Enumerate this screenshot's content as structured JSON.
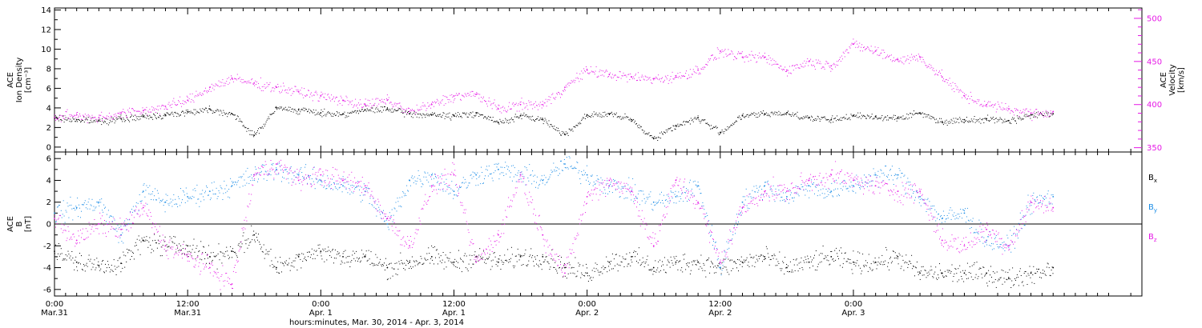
{
  "colors": {
    "black": "#000000",
    "magenta": "#e619e6",
    "blue": "#1a8ce6",
    "axis": "#000000"
  },
  "chart_data": [
    {
      "type": "scatter",
      "panel": "top",
      "ylabel_left": [
        "ACE",
        "Ion Density",
        "[cm⁻³]"
      ],
      "ylabel_right": [
        "ACE",
        "Velocity",
        "[km/s]"
      ],
      "left_axis": {
        "range": [
          -0.5,
          14.2
        ],
        "ticks": [
          "0",
          "2",
          "4",
          "6",
          "8",
          "10",
          "12",
          "14"
        ],
        "tick_values": [
          0,
          2,
          4,
          6,
          8,
          10,
          12,
          14
        ]
      },
      "right_axis": {
        "range": [
          345,
          512
        ],
        "ticks": [
          "350",
          "400",
          "450",
          "500"
        ],
        "tick_values": [
          350,
          400,
          450,
          500
        ]
      },
      "series": [
        {
          "color": "black",
          "axis": "left",
          "x": [
            0,
            2,
            4,
            6,
            8,
            10,
            12,
            14,
            16,
            18,
            20,
            22,
            24,
            26,
            28,
            30,
            32,
            34,
            36,
            38,
            40,
            42,
            44,
            46,
            48,
            50,
            52,
            54,
            56,
            58,
            60,
            62,
            64,
            66,
            68,
            70,
            72,
            74,
            76,
            78,
            80,
            82,
            84,
            86,
            88,
            90
          ],
          "values": [
            3.0,
            2.8,
            2.7,
            2.9,
            3.1,
            3.3,
            3.6,
            3.9,
            3.4,
            1.2,
            4.0,
            3.8,
            3.5,
            3.4,
            3.8,
            3.9,
            3.4,
            3.3,
            3.2,
            3.5,
            2.5,
            3.2,
            2.8,
            1.3,
            3.3,
            3.4,
            2.8,
            0.9,
            2.2,
            3.0,
            1.5,
            3.2,
            3.4,
            3.5,
            3.0,
            2.8,
            3.2,
            3.1,
            3.0,
            3.5,
            2.6,
            2.8,
            2.9,
            2.7,
            3.3,
            3.4
          ]
        },
        {
          "color": "magenta",
          "axis": "right",
          "x": [
            0,
            2,
            4,
            6,
            8,
            10,
            12,
            14,
            16,
            18,
            20,
            22,
            24,
            26,
            28,
            30,
            32,
            34,
            36,
            38,
            40,
            42,
            44,
            46,
            48,
            50,
            52,
            54,
            56,
            58,
            60,
            62,
            64,
            66,
            68,
            70,
            72,
            74,
            76,
            78,
            80,
            82,
            84,
            86,
            88,
            90
          ],
          "values": [
            385,
            388,
            385,
            390,
            393,
            398,
            405,
            420,
            430,
            425,
            420,
            415,
            410,
            405,
            400,
            405,
            392,
            400,
            410,
            412,
            395,
            400,
            400,
            420,
            440,
            435,
            432,
            430,
            432,
            440,
            462,
            455,
            455,
            440,
            450,
            445,
            470,
            462,
            452,
            455,
            432,
            410,
            400,
            395,
            390,
            392
          ]
        }
      ]
    },
    {
      "type": "scatter",
      "panel": "bottom",
      "ylabel_left": [
        "ACE",
        "B",
        "[nT]"
      ],
      "left_axis": {
        "range": [
          -6.6,
          6.6
        ],
        "ticks": [
          "-6",
          "-4",
          "-2",
          "0",
          "2",
          "4",
          "6"
        ],
        "tick_values": [
          -6,
          -4,
          -2,
          0,
          2,
          4,
          6
        ]
      },
      "legend": [
        "Bx",
        "By",
        "Bz"
      ],
      "series": [
        {
          "name": "Bx",
          "color": "black",
          "x": [
            0,
            2,
            4,
            6,
            8,
            10,
            12,
            14,
            16,
            18,
            20,
            22,
            24,
            26,
            28,
            30,
            32,
            34,
            36,
            38,
            40,
            42,
            44,
            46,
            48,
            50,
            52,
            54,
            56,
            58,
            60,
            62,
            64,
            66,
            68,
            70,
            72,
            74,
            76,
            78,
            80,
            82,
            84,
            86,
            88,
            90
          ],
          "values": [
            -2.5,
            -3.5,
            -3.8,
            -3.6,
            -1.5,
            -2.0,
            -2.0,
            -3.0,
            -2.5,
            -1.0,
            -4.0,
            -3.0,
            -2.5,
            -3.0,
            -3.0,
            -4.0,
            -3.5,
            -3.0,
            -3.5,
            -3.0,
            -3.5,
            -3.0,
            -3.0,
            -4.0,
            -4.5,
            -3.5,
            -3.0,
            -4.0,
            -3.5,
            -3.5,
            -4.0,
            -3.5,
            -3.0,
            -4.0,
            -3.5,
            -3.0,
            -3.5,
            -3.5,
            -3.0,
            -4.5,
            -4.5,
            -4.5,
            -4.5,
            -5.0,
            -4.5,
            -4.0
          ]
        },
        {
          "name": "By",
          "color": "blue",
          "x": [
            0,
            2,
            4,
            6,
            8,
            10,
            12,
            14,
            16,
            18,
            20,
            22,
            24,
            26,
            28,
            30,
            32,
            34,
            36,
            38,
            40,
            42,
            44,
            46,
            48,
            50,
            52,
            54,
            56,
            58,
            60,
            62,
            64,
            66,
            68,
            70,
            72,
            74,
            76,
            78,
            80,
            82,
            84,
            86,
            88,
            90
          ],
          "values": [
            1.0,
            1.5,
            2.0,
            -1.0,
            3.0,
            2.0,
            2.5,
            3.0,
            3.5,
            4.5,
            5.0,
            4.5,
            4.0,
            3.5,
            3.0,
            0.0,
            4.0,
            4.5,
            3.0,
            4.5,
            5.0,
            4.5,
            4.0,
            5.5,
            4.5,
            3.5,
            3.0,
            2.0,
            2.5,
            3.5,
            -4.0,
            2.0,
            3.5,
            2.5,
            3.5,
            3.0,
            3.5,
            4.5,
            4.5,
            2.5,
            0.5,
            1.0,
            -1.5,
            -2.0,
            2.0,
            2.5
          ]
        },
        {
          "name": "Bz",
          "color": "magenta",
          "x": [
            0,
            2,
            4,
            6,
            8,
            10,
            12,
            14,
            16,
            18,
            20,
            22,
            24,
            26,
            28,
            30,
            32,
            34,
            36,
            38,
            40,
            42,
            44,
            46,
            48,
            50,
            52,
            54,
            56,
            58,
            60,
            62,
            64,
            66,
            68,
            70,
            72,
            74,
            76,
            78,
            80,
            82,
            84,
            86,
            88,
            90
          ],
          "values": [
            0.5,
            -1.5,
            0.0,
            -0.5,
            1.5,
            -2.0,
            -3.0,
            -4.0,
            -5.5,
            4.5,
            5.5,
            4.0,
            4.5,
            4.0,
            3.5,
            0.5,
            -2.0,
            3.5,
            4.5,
            -3.5,
            -1.0,
            4.5,
            -1.0,
            -4.5,
            2.5,
            4.0,
            3.0,
            -2.0,
            4.0,
            2.0,
            -3.5,
            1.5,
            3.0,
            3.0,
            4.0,
            4.5,
            4.0,
            3.5,
            3.0,
            3.0,
            -1.5,
            -2.0,
            -0.5,
            -2.0,
            2.0,
            1.5
          ]
        }
      ]
    }
  ],
  "x_axis": {
    "range_hours": [
      0,
      98
    ],
    "ticks": [
      {
        "value": 0,
        "time": "0:00",
        "date": "Mar.31"
      },
      {
        "value": 12,
        "time": "12:00",
        "date": "Mar.31"
      },
      {
        "value": 24,
        "time": "0:00",
        "date": "Apr. 1"
      },
      {
        "value": 36,
        "time": "12:00",
        "date": "Apr. 1"
      },
      {
        "value": 48,
        "time": "0:00",
        "date": "Apr. 2"
      },
      {
        "value": 60,
        "time": "12:00",
        "date": "Apr. 2"
      },
      {
        "value": 72,
        "time": "0:00",
        "date": "Apr. 3"
      }
    ],
    "title": "hours:minutes, Mar. 30, 2014 - Apr.  3, 2014"
  },
  "legend_labels": [
    {
      "base": "B",
      "sub": "x",
      "color": "black"
    },
    {
      "base": "B",
      "sub": "y",
      "color": "blue"
    },
    {
      "base": "B",
      "sub": "z",
      "color": "magenta"
    }
  ]
}
